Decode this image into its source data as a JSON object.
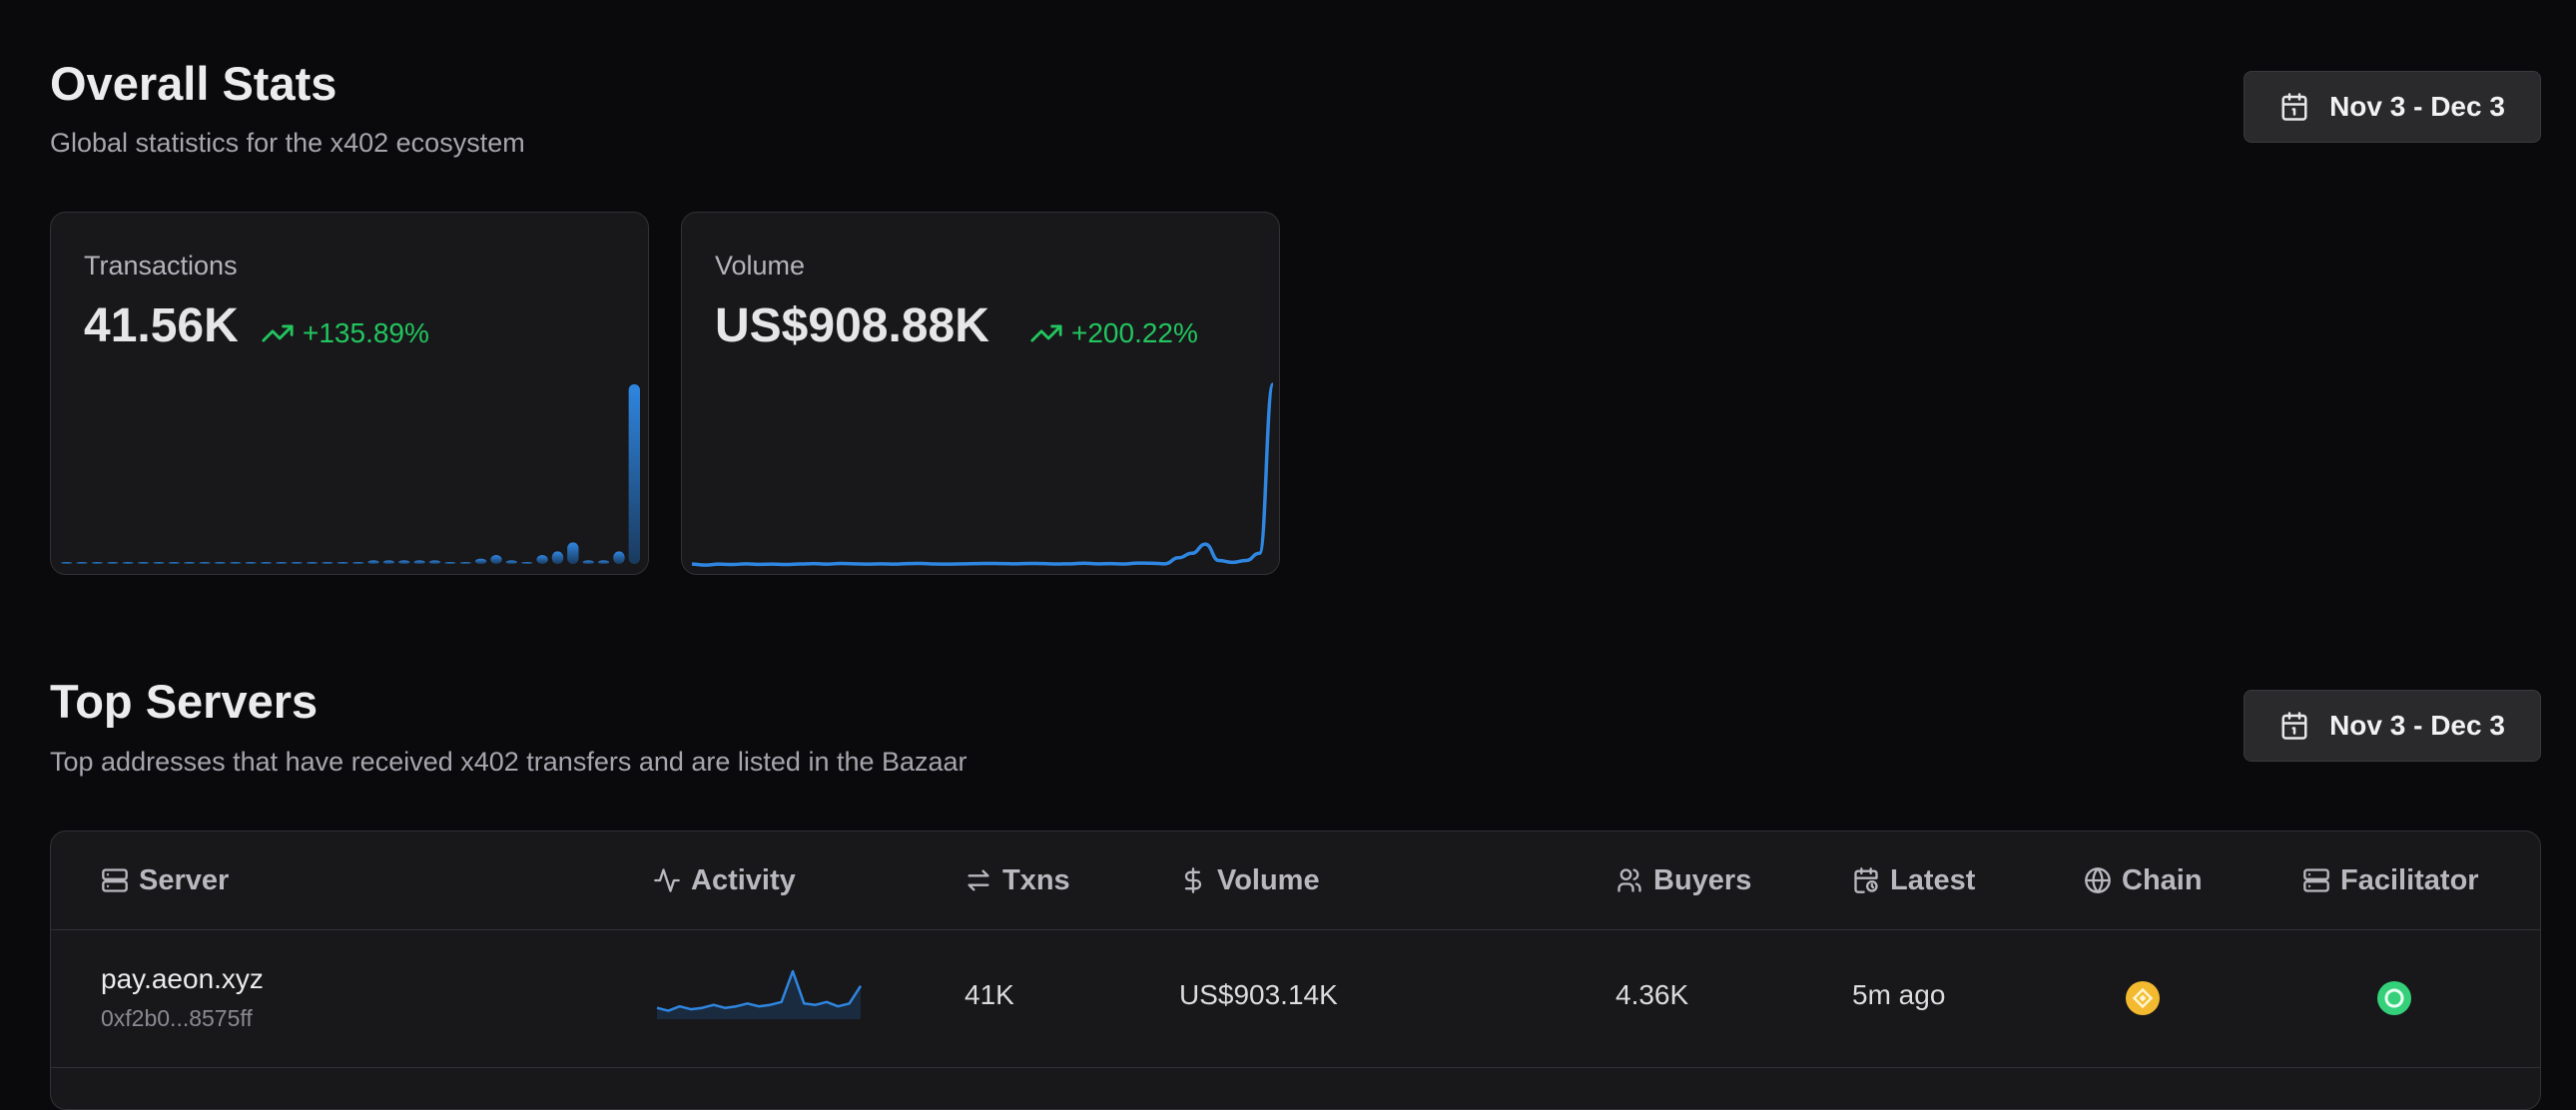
{
  "overall": {
    "title": "Overall Stats",
    "subtitle": "Global statistics for the x402 ecosystem",
    "date_range": "Nov 3 - Dec 3"
  },
  "cards": {
    "transactions": {
      "label": "Transactions",
      "value": "41.56K",
      "change": "+135.89%",
      "bars": [
        1,
        1,
        1,
        1,
        1,
        1,
        1,
        1,
        1,
        1,
        1,
        1,
        1,
        1,
        1,
        1,
        1,
        1,
        1,
        1,
        2,
        2,
        2,
        2,
        2,
        1,
        1,
        3,
        5,
        2,
        1,
        5,
        7,
        12,
        2,
        2,
        7,
        100
      ]
    },
    "volume": {
      "label": "Volume",
      "value": "US$908.88K",
      "change": "+200.22%",
      "line": [
        1,
        0.5,
        1,
        0.8,
        1.2,
        0.9,
        1,
        0.8,
        1.1,
        1.3,
        1,
        1.4,
        1.2,
        1,
        1.2,
        1,
        1.3,
        1.4,
        1.1,
        1,
        1.2,
        1.3,
        1.4,
        1.3,
        1.2,
        1.4,
        1.3,
        1.1,
        1.2,
        1.5,
        1.2,
        1.3,
        1.1,
        1.6,
        1.5,
        1.2,
        4.5,
        7,
        12,
        3,
        2,
        3,
        7,
        100
      ]
    }
  },
  "top_servers": {
    "title": "Top Servers",
    "subtitle": "Top addresses that have received x402 transfers and are listed in the Bazaar",
    "date_range": "Nov 3 - Dec 3",
    "columns": {
      "server": "Server",
      "activity": "Activity",
      "txns": "Txns",
      "volume": "Volume",
      "buyers": "Buyers",
      "latest": "Latest",
      "chain": "Chain",
      "facilitator": "Facilitator"
    },
    "rows": [
      {
        "server": "pay.aeon.xyz",
        "address": "0xf2b0...8575ff",
        "activity": [
          5,
          3,
          6,
          4,
          5,
          7,
          5,
          6,
          8,
          6,
          7,
          9,
          30,
          8,
          7,
          9,
          6,
          8,
          20
        ],
        "txns": "41K",
        "volume": "US$903.14K",
        "buyers": "4.36K",
        "latest": "5m ago",
        "chain_icon": "bnb-chain-icon",
        "facilitator_icon": "facilitator-logo-icon"
      }
    ]
  },
  "colors": {
    "accent": "#2f86e0",
    "positive": "#22c55e",
    "bnb": "#f3ba2f",
    "facilitator": "#34d17a"
  }
}
